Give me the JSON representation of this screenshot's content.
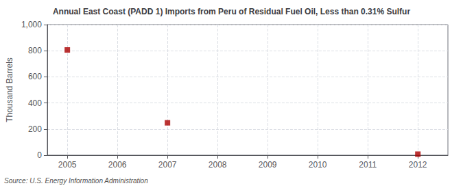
{
  "chart_data": {
    "type": "scatter",
    "title": "Annual East Coast (PADD 1) Imports from Peru of Residual Fuel Oil, Less than 0.31% Sulfur",
    "ylabel": "Thousand Barrels",
    "annotation": "Source: U.S. Energy Information Administration",
    "x": [
      2005,
      2007,
      2012
    ],
    "values": [
      806,
      248,
      8
    ],
    "color": "#aa0000",
    "marker": "square",
    "xlim": [
      2004.6,
      2012.6
    ],
    "xticks": [
      2005,
      2006,
      2007,
      2008,
      2009,
      2010,
      2011,
      2012
    ],
    "ylim": [
      0,
      1000
    ],
    "yticks": [
      0,
      200,
      400,
      600,
      800,
      {
        "value": 1000,
        "label": "1,000"
      }
    ],
    "grid": true
  }
}
